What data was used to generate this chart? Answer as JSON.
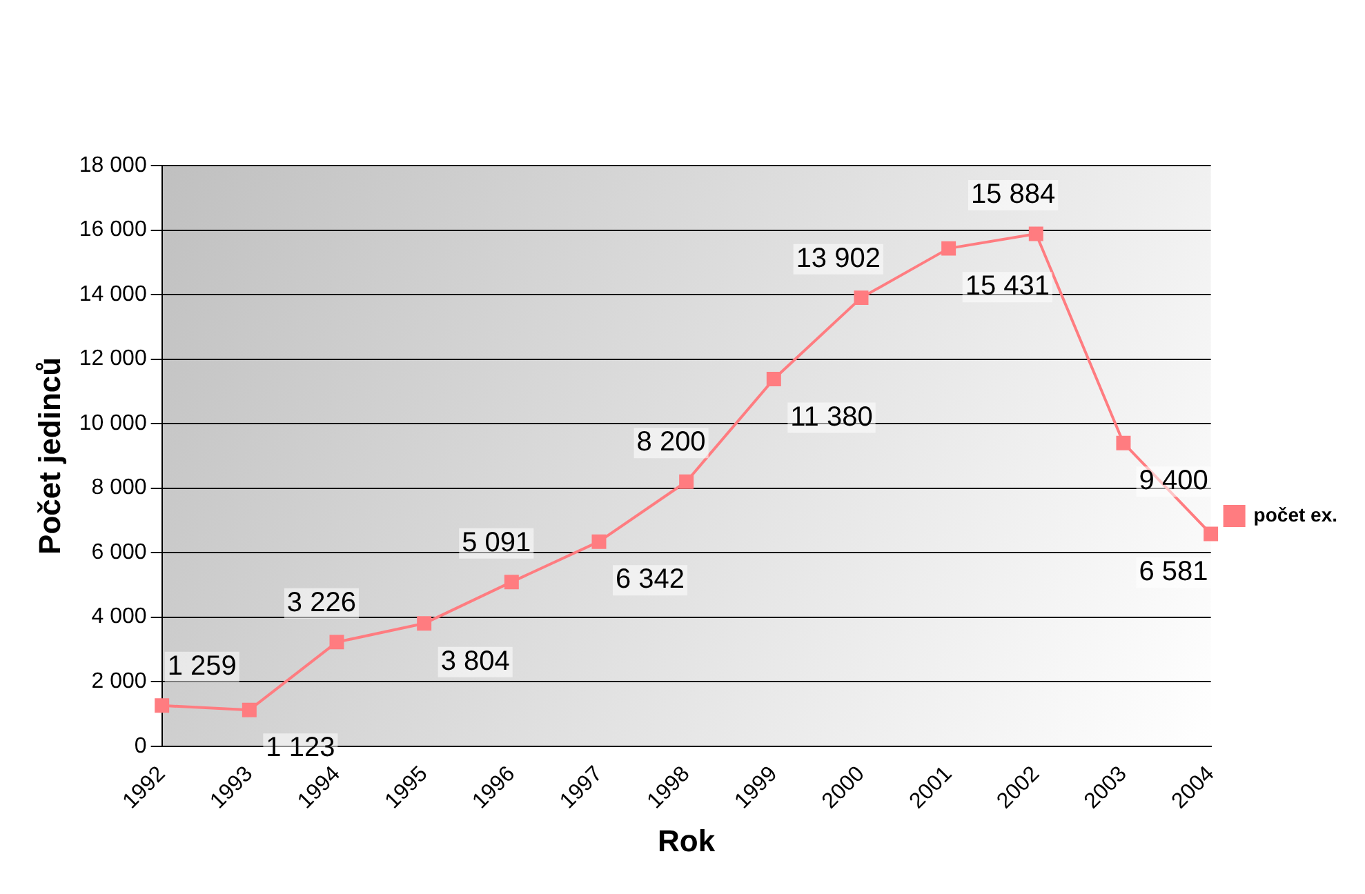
{
  "chart_data": {
    "type": "line",
    "xlabel": "Rok",
    "ylabel": "Počet jedinců",
    "categories": [
      "1992",
      "1993",
      "1994",
      "1995",
      "1996",
      "1997",
      "1998",
      "1999",
      "2000",
      "2001",
      "2002",
      "2003",
      "2004"
    ],
    "series": [
      {
        "name": "počet ex.",
        "color": "#ff7c80",
        "values": [
          1259,
          1123,
          3226,
          3804,
          5091,
          6342,
          8200,
          11380,
          13902,
          15431,
          15884,
          9400,
          6581
        ],
        "value_labels": [
          "1 259",
          "1 123",
          "3 226",
          "3 804",
          "5 091",
          "6 342",
          "8 200",
          "11 380",
          "13 902",
          "15 431",
          "15 884",
          "9 400",
          "6 581"
        ]
      }
    ],
    "ylim": [
      0,
      18000
    ],
    "yticks": [
      0,
      {
        "value": 2000,
        "label": "2 000"
      },
      {
        "value": 4000,
        "label": "4 000"
      },
      {
        "value": 6000,
        "label": "6 000"
      },
      {
        "value": 8000,
        "label": "8 000"
      },
      {
        "value": 10000,
        "label": "10 000"
      },
      {
        "value": 12000,
        "label": "12 000"
      },
      {
        "value": 14000,
        "label": "14 000"
      },
      {
        "value": 16000,
        "label": "16 000"
      },
      {
        "value": 18000,
        "label": "18 000"
      }
    ],
    "grid": "y",
    "legend": "right",
    "marker": "square",
    "line_style": "solid"
  }
}
